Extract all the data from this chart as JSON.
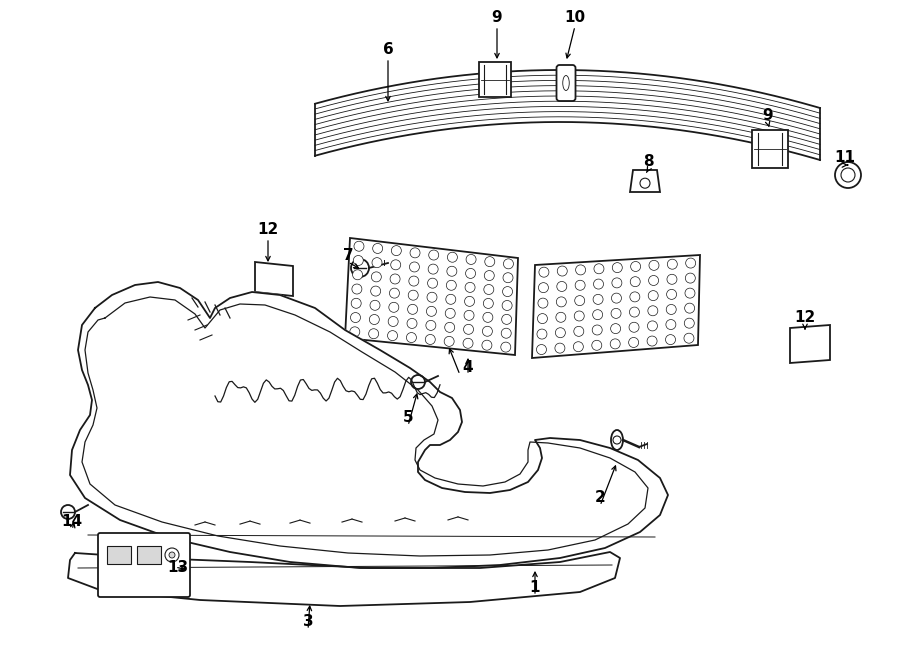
{
  "bg_color": "#ffffff",
  "line_color": "#1a1a1a",
  "fig_width": 9.0,
  "fig_height": 6.61,
  "label_fontsize": 11,
  "labels": [
    [
      "9",
      497,
      18
    ],
    [
      "10",
      575,
      18
    ],
    [
      "6",
      388,
      50
    ],
    [
      "9",
      768,
      115
    ],
    [
      "8",
      648,
      162
    ],
    [
      "11",
      845,
      158
    ],
    [
      "12",
      268,
      230
    ],
    [
      "7",
      348,
      255
    ],
    [
      "12",
      805,
      318
    ],
    [
      "4",
      468,
      368
    ],
    [
      "5",
      408,
      418
    ],
    [
      "1",
      535,
      588
    ],
    [
      "2",
      600,
      498
    ],
    [
      "3",
      308,
      622
    ],
    [
      "13",
      178,
      568
    ],
    [
      "14",
      72,
      522
    ]
  ]
}
